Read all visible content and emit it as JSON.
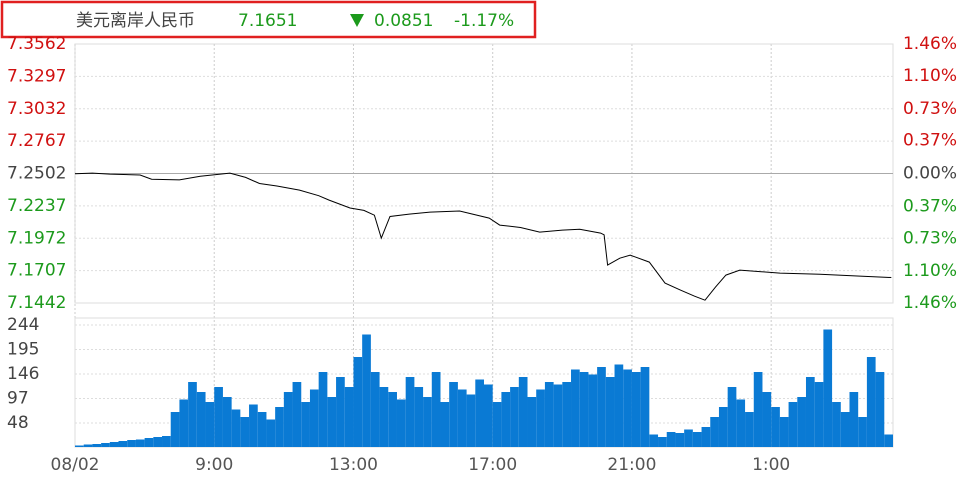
{
  "header": {
    "name": "美元离岸人民币",
    "price": "7.1651",
    "change": "0.0851",
    "change_pct": "-1.17%"
  },
  "chart_data": [
    {
      "type": "line",
      "x": [
        0,
        0.5,
        1.0,
        1.87,
        2.2,
        3.0,
        3.6,
        4.45,
        4.9,
        5.3,
        5.8,
        6.45,
        7.0,
        7.3,
        7.9,
        8.3,
        8.6,
        8.8,
        9.05,
        9.6,
        10.2,
        11.05,
        11.9,
        12.2,
        12.8,
        13.35,
        14.0,
        14.5,
        15.1,
        15.2,
        15.3,
        15.65,
        15.95,
        16.5,
        16.95,
        17.4,
        17.8,
        18.1,
        18.4,
        18.7,
        19.1,
        20.25,
        21.4,
        22.55,
        23.45
      ],
      "values": [
        7.25,
        7.2505,
        7.2497,
        7.249,
        7.2455,
        7.245,
        7.248,
        7.2505,
        7.247,
        7.242,
        7.24,
        7.2366,
        7.232,
        7.2284,
        7.222,
        7.22,
        7.2161,
        7.1973,
        7.215,
        7.217,
        7.2186,
        7.2195,
        7.2137,
        7.208,
        7.206,
        7.2022,
        7.2039,
        7.2045,
        7.2014,
        7.2,
        7.1752,
        7.1809,
        7.1834,
        7.1777,
        7.1605,
        7.1547,
        7.1498,
        7.1465,
        7.1572,
        7.167,
        7.1711,
        7.1687,
        7.1678,
        7.1662,
        7.1651
      ],
      "color": "#000000",
      "xlim": [
        0,
        23.5
      ],
      "xticks": [
        {
          "value": 0,
          "label": "08/02"
        },
        {
          "value": 4,
          "label": "9:00"
        },
        {
          "value": 8,
          "label": "13:00"
        },
        {
          "value": 12,
          "label": "17:00"
        },
        {
          "value": 16,
          "label": "21:00"
        },
        {
          "value": 20,
          "label": "1:00"
        }
      ],
      "ylim": [
        7.1442,
        7.3562
      ],
      "yticks": [
        7.3562,
        7.3297,
        7.3032,
        7.2767,
        7.2502,
        7.2237,
        7.1972,
        7.1707,
        7.1442
      ],
      "y2lim": [
        -1.46,
        1.46
      ],
      "y2ticks": [
        {
          "value": 1.46,
          "label": "1.46%"
        },
        {
          "value": 1.1,
          "label": "1.10%"
        },
        {
          "value": 0.73,
          "label": "0.73%"
        },
        {
          "value": 0.37,
          "label": "0.37%"
        },
        {
          "value": 0.0,
          "label": "0.00%"
        },
        {
          "value": -0.37,
          "label": "0.37%"
        },
        {
          "value": -0.73,
          "label": "0.73%"
        },
        {
          "value": -1.1,
          "label": "1.10%"
        },
        {
          "value": -1.46,
          "label": "1.46%"
        }
      ],
      "grid": true
    },
    {
      "type": "bar",
      "values": [
        3,
        5,
        6,
        8,
        10,
        12,
        14,
        15,
        18,
        20,
        22,
        70,
        95,
        130,
        110,
        90,
        120,
        100,
        75,
        60,
        85,
        70,
        55,
        80,
        110,
        130,
        90,
        115,
        150,
        100,
        140,
        120,
        180,
        225,
        150,
        120,
        110,
        95,
        140,
        120,
        100,
        150,
        90,
        130,
        115,
        105,
        135,
        125,
        90,
        110,
        120,
        140,
        100,
        115,
        130,
        125,
        130,
        155,
        150,
        145,
        160,
        140,
        165,
        155,
        150,
        160,
        25,
        20,
        30,
        28,
        35,
        30,
        40,
        60,
        80,
        120,
        95,
        70,
        150,
        110,
        80,
        60,
        90,
        100,
        140,
        130,
        235,
        90,
        70,
        110,
        60,
        180,
        150,
        25
      ],
      "color": "#0a7ad4",
      "ylim": [
        0,
        244
      ],
      "yticks": [
        48,
        97,
        146,
        195,
        244
      ],
      "grid": true
    }
  ]
}
